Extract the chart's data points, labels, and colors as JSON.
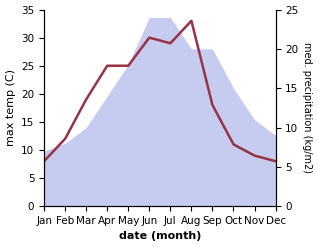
{
  "months": [
    "Jan",
    "Feb",
    "Mar",
    "Apr",
    "May",
    "Jun",
    "Jul",
    "Aug",
    "Sep",
    "Oct",
    "Nov",
    "Dec"
  ],
  "max_temp": [
    8,
    12,
    19,
    25,
    25,
    30,
    29,
    33,
    18,
    11,
    9,
    8
  ],
  "precipitation_right": [
    7,
    8,
    10,
    14,
    18,
    24,
    24,
    20,
    20,
    15,
    11,
    9
  ],
  "temp_color": "#993344",
  "precip_fill_color": "#c5ccf0",
  "temp_ylim": [
    0,
    35
  ],
  "precip_ylim": [
    0,
    25
  ],
  "temp_yticks": [
    0,
    5,
    10,
    15,
    20,
    25,
    30,
    35
  ],
  "precip_yticks": [
    0,
    5,
    10,
    15,
    20,
    25
  ],
  "xlabel": "date (month)",
  "ylabel_left": "max temp (C)",
  "ylabel_right": "med. precipitation (kg/m2)",
  "label_fontsize": 8,
  "tick_fontsize": 7.5
}
